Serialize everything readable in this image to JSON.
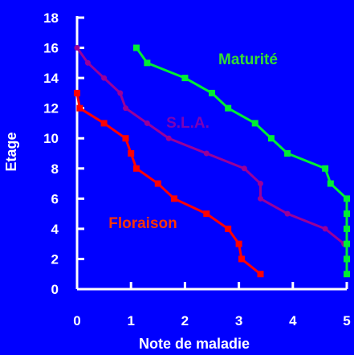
{
  "chart_data": {
    "type": "line",
    "xlabel": "Note de maladie",
    "ylabel": "Etage",
    "xlim": [
      0,
      5
    ],
    "ylim": [
      0,
      18
    ],
    "xticks": [
      0,
      1,
      2,
      3,
      4,
      5
    ],
    "yticks": [
      0,
      2,
      4,
      6,
      8,
      10,
      12,
      14,
      16,
      18
    ],
    "grid": false,
    "legend": "inline labels",
    "background": "#0000FF",
    "axis_color": "#FFFFFF",
    "series": [
      {
        "name": "Floraison",
        "color": "#FF0000",
        "label_color": "#FF3300",
        "marker": "square",
        "points": [
          {
            "x": 0.0,
            "y": 13
          },
          {
            "x": 0.05,
            "y": 12
          },
          {
            "x": 0.5,
            "y": 11
          },
          {
            "x": 0.9,
            "y": 10
          },
          {
            "x": 1.0,
            "y": 9
          },
          {
            "x": 1.1,
            "y": 8
          },
          {
            "x": 1.5,
            "y": 7
          },
          {
            "x": 1.8,
            "y": 6
          },
          {
            "x": 2.4,
            "y": 5
          },
          {
            "x": 2.8,
            "y": 4
          },
          {
            "x": 3.0,
            "y": 3
          },
          {
            "x": 3.05,
            "y": 2
          },
          {
            "x": 3.4,
            "y": 1
          }
        ]
      },
      {
        "name": "S.L.A.",
        "color": "#990099",
        "label_color": "#7A00B8",
        "marker": "circle",
        "points": [
          {
            "x": 0.0,
            "y": 16
          },
          {
            "x": 0.2,
            "y": 15
          },
          {
            "x": 0.5,
            "y": 14
          },
          {
            "x": 0.8,
            "y": 13
          },
          {
            "x": 0.9,
            "y": 12
          },
          {
            "x": 1.3,
            "y": 11
          },
          {
            "x": 1.7,
            "y": 10
          },
          {
            "x": 2.4,
            "y": 9
          },
          {
            "x": 3.1,
            "y": 8
          },
          {
            "x": 3.4,
            "y": 7
          },
          {
            "x": 3.4,
            "y": 6
          },
          {
            "x": 3.9,
            "y": 5
          },
          {
            "x": 4.6,
            "y": 4
          },
          {
            "x": 4.95,
            "y": 3
          }
        ]
      },
      {
        "name": "Maturité",
        "color": "#00EE33",
        "label_color": "#33DD33",
        "marker": "square",
        "points": [
          {
            "x": 1.1,
            "y": 16
          },
          {
            "x": 1.3,
            "y": 15
          },
          {
            "x": 2.0,
            "y": 14
          },
          {
            "x": 2.5,
            "y": 13
          },
          {
            "x": 2.8,
            "y": 12
          },
          {
            "x": 3.3,
            "y": 11
          },
          {
            "x": 3.6,
            "y": 10
          },
          {
            "x": 3.9,
            "y": 9
          },
          {
            "x": 4.6,
            "y": 8
          },
          {
            "x": 4.7,
            "y": 7
          },
          {
            "x": 5.0,
            "y": 6
          },
          {
            "x": 5.0,
            "y": 5
          },
          {
            "x": 5.0,
            "y": 4
          },
          {
            "x": 5.0,
            "y": 3
          },
          {
            "x": 5.0,
            "y": 2
          },
          {
            "x": 5.0,
            "y": 1
          }
        ]
      }
    ]
  }
}
